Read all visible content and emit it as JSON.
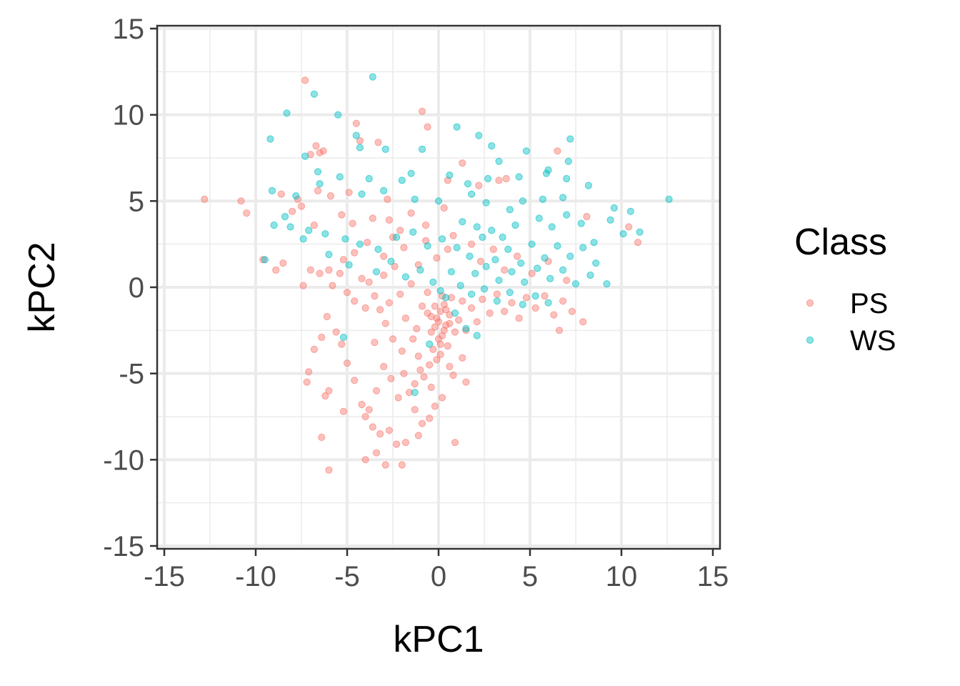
{
  "chart_data": {
    "type": "scatter",
    "title": "",
    "xlabel": "kPC1",
    "ylabel": "kPC2",
    "xlim": [
      -15,
      15
    ],
    "ylim": [
      -15,
      15
    ],
    "x_ticks": [
      "-15",
      "-10",
      "-5",
      "0",
      "5",
      "10",
      "15"
    ],
    "y_ticks": [
      "15",
      "10",
      "5",
      "0",
      "-5",
      "-10",
      "-15"
    ],
    "grid": true,
    "legend": {
      "title": "Class",
      "position": "right"
    },
    "series": [
      {
        "name": "PS",
        "color": "#F8766D",
        "points": [
          [
            -12.8,
            5.1
          ],
          [
            -10.8,
            5.0
          ],
          [
            -10.5,
            4.3
          ],
          [
            -7.3,
            12.0
          ],
          [
            -6.7,
            8.2
          ],
          [
            -6.5,
            7.8
          ],
          [
            -6.3,
            7.9
          ],
          [
            -7.0,
            7.7
          ],
          [
            -4.5,
            9.5
          ],
          [
            -4.3,
            8.5
          ],
          [
            -3.3,
            8.4
          ],
          [
            -0.9,
            10.2
          ],
          [
            -0.6,
            9.3
          ],
          [
            1.3,
            7.2
          ],
          [
            0.5,
            6.2
          ],
          [
            2.2,
            5.9
          ],
          [
            3.3,
            6.2
          ],
          [
            3.7,
            6.3
          ],
          [
            6.5,
            7.9
          ],
          [
            8.1,
            4.1
          ],
          [
            10.4,
            3.5
          ],
          [
            10.9,
            2.6
          ],
          [
            -9.6,
            1.6
          ],
          [
            -8.5,
            1.4
          ],
          [
            -7.4,
            0.1
          ],
          [
            -8.9,
            1.0
          ],
          [
            -7.0,
            1.0
          ],
          [
            -6.5,
            0.8
          ],
          [
            -6.0,
            1.0
          ],
          [
            -5.8,
            0.1
          ],
          [
            -5.4,
            0.8
          ],
          [
            -5.0,
            -0.3
          ],
          [
            -4.6,
            -0.8
          ],
          [
            -4.2,
            0.5
          ],
          [
            -4.0,
            -1.2
          ],
          [
            -3.8,
            0.3
          ],
          [
            -3.5,
            -0.5
          ],
          [
            -3.2,
            -1.3
          ],
          [
            -3.0,
            0.7
          ],
          [
            -2.7,
            -0.9
          ],
          [
            -2.4,
            1.2
          ],
          [
            -2.1,
            -0.4
          ],
          [
            -1.8,
            -1.8
          ],
          [
            -1.5,
            0.2
          ],
          [
            -1.2,
            -2.4
          ],
          [
            -0.9,
            -1.1
          ],
          [
            -0.6,
            -0.3
          ],
          [
            -0.4,
            -1.7
          ],
          [
            -0.2,
            -2.3
          ],
          [
            0.0,
            -2.0
          ],
          [
            0.1,
            -1.4
          ],
          [
            0.2,
            -2.8
          ],
          [
            0.3,
            -1.0
          ],
          [
            0.4,
            -2.2
          ],
          [
            0.5,
            -3.4
          ],
          [
            0.6,
            -1.6
          ],
          [
            0.7,
            -0.6
          ],
          [
            0.9,
            -2.6
          ],
          [
            1.1,
            -1.9
          ],
          [
            1.3,
            -0.8
          ],
          [
            1.5,
            -2.5
          ],
          [
            1.8,
            -1.2
          ],
          [
            2.1,
            -2.0
          ],
          [
            2.4,
            -0.7
          ],
          [
            2.8,
            -1.5
          ],
          [
            3.2,
            -0.4
          ],
          [
            3.6,
            -1.4
          ],
          [
            4.0,
            -0.9
          ],
          [
            4.4,
            -1.8
          ],
          [
            4.8,
            -0.6
          ],
          [
            5.3,
            -1.2
          ],
          [
            5.8,
            -0.5
          ],
          [
            6.3,
            -1.6
          ],
          [
            6.8,
            -0.8
          ],
          [
            7.3,
            -1.4
          ],
          [
            7.9,
            -2.0
          ],
          [
            6.6,
            -2.5
          ],
          [
            -0.3,
            -3.6
          ],
          [
            -0.1,
            -4.2
          ],
          [
            0.1,
            -3.9
          ],
          [
            -0.5,
            -4.5
          ],
          [
            -0.8,
            -5.2
          ],
          [
            -1.0,
            -4.8
          ],
          [
            -1.3,
            -5.6
          ],
          [
            -1.6,
            -6.1
          ],
          [
            -1.9,
            -5.0
          ],
          [
            -2.2,
            -6.4
          ],
          [
            -2.6,
            -5.3
          ],
          [
            -3.0,
            -4.6
          ],
          [
            -3.4,
            -6.0
          ],
          [
            -3.8,
            -7.1
          ],
          [
            -4.2,
            -6.8
          ],
          [
            -4.6,
            -5.4
          ],
          [
            -5.0,
            -4.4
          ],
          [
            -5.3,
            -3.3
          ],
          [
            -5.6,
            -2.6
          ],
          [
            -6.1,
            -1.7
          ],
          [
            -6.4,
            -2.9
          ],
          [
            -6.8,
            -3.6
          ],
          [
            -7.1,
            -4.9
          ],
          [
            -7.2,
            -5.5
          ],
          [
            -6.0,
            -6.0
          ],
          [
            -6.2,
            -6.3
          ],
          [
            -5.2,
            -7.2
          ],
          [
            -4.0,
            -7.5
          ],
          [
            -3.6,
            -8.1
          ],
          [
            -3.2,
            -8.5
          ],
          [
            -2.7,
            -8.3
          ],
          [
            -2.3,
            -9.1
          ],
          [
            -1.8,
            -9.0
          ],
          [
            -1.1,
            -8.6
          ],
          [
            -0.5,
            -7.6
          ],
          [
            0.2,
            -6.4
          ],
          [
            0.8,
            -5.1
          ],
          [
            1.3,
            -4.1
          ],
          [
            -0.2,
            -6.9
          ],
          [
            -0.9,
            -7.9
          ],
          [
            -2.9,
            -10.3
          ],
          [
            -2.0,
            -10.3
          ],
          [
            -3.4,
            -9.6
          ],
          [
            -4.0,
            -10.0
          ],
          [
            -6.4,
            -8.7
          ],
          [
            -6.0,
            -10.6
          ],
          [
            0.9,
            -9.0
          ],
          [
            -1.3,
            -7.1
          ],
          [
            -0.4,
            -5.8
          ],
          [
            1.5,
            -5.5
          ],
          [
            -3.5,
            -3.2
          ],
          [
            -2.9,
            -2.1
          ],
          [
            -2.5,
            -3.0
          ],
          [
            -2.0,
            -3.7
          ],
          [
            -1.4,
            -3.0
          ],
          [
            -1.1,
            -4.0
          ],
          [
            0.6,
            -4.6
          ],
          [
            -4.6,
            2.0
          ],
          [
            -5.2,
            1.6
          ],
          [
            -3.9,
            2.6
          ],
          [
            -3.0,
            1.8
          ],
          [
            -2.5,
            2.9
          ],
          [
            -1.9,
            2.3
          ],
          [
            -1.1,
            1.3
          ],
          [
            -0.7,
            2.7
          ],
          [
            -0.1,
            1.7
          ],
          [
            0.5,
            2.2
          ],
          [
            -8.0,
            4.4
          ],
          [
            -7.5,
            4.7
          ],
          [
            -6.8,
            3.6
          ],
          [
            -5.3,
            4.2
          ],
          [
            -4.7,
            3.7
          ],
          [
            -3.6,
            4.0
          ],
          [
            -2.7,
            3.9
          ],
          [
            -2.1,
            3.3
          ],
          [
            -1.5,
            4.3
          ],
          [
            -0.7,
            3.6
          ],
          [
            0.3,
            4.6
          ],
          [
            0.8,
            3.0
          ],
          [
            -8.6,
            5.4
          ],
          [
            -7.7,
            5.1
          ],
          [
            -6.6,
            5.6
          ],
          [
            -5.9,
            5.3
          ],
          [
            -4.9,
            5.5
          ],
          [
            -2.8,
            5.1
          ],
          [
            1.8,
            2.5
          ],
          [
            2.3,
            1.5
          ],
          [
            3.0,
            2.2
          ],
          [
            3.6,
            1.0
          ],
          [
            4.3,
            1.8
          ],
          [
            5.1,
            0.8
          ],
          [
            6.0,
            1.5
          ],
          [
            7.0,
            0.4
          ],
          [
            0.2,
            -0.5
          ],
          [
            -0.2,
            -1.1
          ],
          [
            0.4,
            -1.3
          ],
          [
            -0.4,
            -2.6
          ],
          [
            0.0,
            -3.0
          ],
          [
            0.3,
            -2.5
          ],
          [
            -0.1,
            -1.8
          ],
          [
            0.6,
            -2.1
          ],
          [
            -0.6,
            -1.5
          ],
          [
            0.1,
            -3.3
          ]
        ]
      },
      {
        "name": "WS",
        "color": "#00BFC4",
        "points": [
          [
            -3.6,
            12.2
          ],
          [
            -6.8,
            11.2
          ],
          [
            -8.3,
            10.1
          ],
          [
            -5.5,
            10.0
          ],
          [
            -9.2,
            8.6
          ],
          [
            -4.5,
            8.8
          ],
          [
            -4.3,
            8.1
          ],
          [
            -2.9,
            8.0
          ],
          [
            -0.9,
            8.0
          ],
          [
            1.0,
            9.3
          ],
          [
            2.2,
            8.8
          ],
          [
            2.9,
            8.2
          ],
          [
            3.3,
            7.3
          ],
          [
            4.8,
            7.9
          ],
          [
            7.2,
            8.6
          ],
          [
            7.1,
            7.3
          ],
          [
            6.0,
            6.8
          ],
          [
            -7.3,
            7.6
          ],
          [
            -6.6,
            6.7
          ],
          [
            -5.4,
            6.4
          ],
          [
            -3.8,
            6.3
          ],
          [
            -2.0,
            6.2
          ],
          [
            -1.5,
            6.6
          ],
          [
            0.6,
            6.5
          ],
          [
            1.6,
            6.0
          ],
          [
            2.7,
            6.3
          ],
          [
            4.4,
            6.4
          ],
          [
            5.9,
            6.6
          ],
          [
            7.0,
            6.3
          ],
          [
            8.2,
            5.9
          ],
          [
            -9.1,
            5.6
          ],
          [
            -7.8,
            5.3
          ],
          [
            -6.5,
            6.0
          ],
          [
            -4.2,
            5.4
          ],
          [
            -3.0,
            5.6
          ],
          [
            -1.3,
            5.1
          ],
          [
            0.0,
            5.0
          ],
          [
            1.8,
            5.4
          ],
          [
            2.6,
            4.9
          ],
          [
            3.9,
            4.5
          ],
          [
            4.6,
            5.0
          ],
          [
            5.7,
            5.1
          ],
          [
            6.8,
            5.2
          ],
          [
            -9.5,
            1.6
          ],
          [
            -9.0,
            3.6
          ],
          [
            -8.1,
            3.5
          ],
          [
            -7.1,
            3.3
          ],
          [
            -6.2,
            3.1
          ],
          [
            -5.1,
            2.8
          ],
          [
            -4.3,
            2.5
          ],
          [
            -3.3,
            2.2
          ],
          [
            -2.3,
            2.9
          ],
          [
            -1.4,
            3.2
          ],
          [
            -0.6,
            2.4
          ],
          [
            0.2,
            2.8
          ],
          [
            1.0,
            2.3
          ],
          [
            1.7,
            1.8
          ],
          [
            2.4,
            2.9
          ],
          [
            3.1,
            1.6
          ],
          [
            3.8,
            2.2
          ],
          [
            4.5,
            1.4
          ],
          [
            5.1,
            2.5
          ],
          [
            5.8,
            1.7
          ],
          [
            6.5,
            2.4
          ],
          [
            7.2,
            1.8
          ],
          [
            7.9,
            2.3
          ],
          [
            8.6,
            1.4
          ],
          [
            9.4,
            3.9
          ],
          [
            9.6,
            4.6
          ],
          [
            10.1,
            3.1
          ],
          [
            10.5,
            4.4
          ],
          [
            11.0,
            3.2
          ],
          [
            12.6,
            5.1
          ],
          [
            2.0,
            0.8
          ],
          [
            2.6,
            1.2
          ],
          [
            3.3,
            0.4
          ],
          [
            4.0,
            0.9
          ],
          [
            4.7,
            0.3
          ],
          [
            5.4,
            1.1
          ],
          [
            6.1,
            0.5
          ],
          [
            6.8,
            1.0
          ],
          [
            7.5,
            0.2
          ],
          [
            8.3,
            0.7
          ],
          [
            9.2,
            0.2
          ],
          [
            0.7,
            0.9
          ],
          [
            1.2,
            0.1
          ],
          [
            1.8,
            -0.4
          ],
          [
            2.5,
            -0.1
          ],
          [
            3.2,
            -0.8
          ],
          [
            3.9,
            -0.3
          ],
          [
            4.6,
            -1.0
          ],
          [
            5.3,
            -0.5
          ],
          [
            6.0,
            -0.9
          ],
          [
            0.4,
            -0.6
          ],
          [
            0.9,
            -1.5
          ],
          [
            1.5,
            -2.4
          ],
          [
            2.1,
            -2.8
          ],
          [
            -0.5,
            -3.3
          ],
          [
            -1.3,
            -6.1
          ],
          [
            -5.2,
            -2.9
          ],
          [
            -3.4,
            0.9
          ],
          [
            -2.6,
            1.5
          ],
          [
            -1.8,
            0.6
          ],
          [
            -1.0,
            1.0
          ],
          [
            -0.3,
            0.3
          ],
          [
            0.1,
            -0.2
          ],
          [
            2.9,
            3.3
          ],
          [
            3.5,
            2.9
          ],
          [
            4.2,
            3.6
          ],
          [
            5.5,
            4.0
          ],
          [
            6.2,
            3.5
          ],
          [
            7.0,
            4.2
          ],
          [
            7.8,
            3.7
          ],
          [
            8.5,
            2.6
          ],
          [
            1.3,
            3.8
          ],
          [
            2.1,
            3.5
          ],
          [
            -4.9,
            1.3
          ],
          [
            -6.0,
            1.9
          ],
          [
            -7.4,
            2.8
          ],
          [
            -8.4,
            4.1
          ]
        ]
      }
    ]
  }
}
